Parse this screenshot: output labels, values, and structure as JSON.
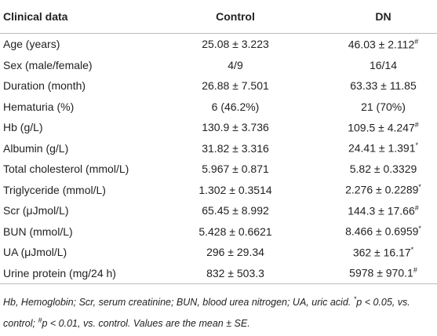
{
  "table": {
    "header": [
      "Clinical data",
      "Control",
      "DN"
    ],
    "rows": [
      [
        "Age (years)",
        {
          "text": "25.08 ± 3.223"
        },
        {
          "text": "46.03 ± 2.112",
          "sup": "#"
        }
      ],
      [
        "Sex (male/female)",
        {
          "text": "4/9"
        },
        {
          "text": "16/14"
        }
      ],
      [
        "Duration (month)",
        {
          "text": "26.88 ± 7.501"
        },
        {
          "text": "63.33 ± 11.85"
        }
      ],
      [
        "Hematuria (%)",
        {
          "text": "6 (46.2%)"
        },
        {
          "text": "21 (70%)"
        }
      ],
      [
        "Hb (g/L)",
        {
          "text": "130.9 ± 3.736"
        },
        {
          "text": "109.5 ± 4.247",
          "sup": "#"
        }
      ],
      [
        "Albumin (g/L)",
        {
          "text": "31.82 ± 3.316"
        },
        {
          "text": "24.41 ± 1.391",
          "sup": "*"
        }
      ],
      [
        "Total cholesterol (mmol/L)",
        {
          "text": "5.967 ± 0.871"
        },
        {
          "text": "5.82 ± 0.3329"
        }
      ],
      [
        "Triglyceride (mmol/L)",
        {
          "text": "1.302 ± 0.3514"
        },
        {
          "text": "2.276 ± 0.2289",
          "sup": "*"
        }
      ],
      [
        "Scr (μJmol/L)",
        {
          "text": "65.45 ± 8.992"
        },
        {
          "text": "144.3 ± 17.66",
          "sup": "#"
        }
      ],
      [
        "BUN (mmol/L)",
        {
          "text": "5.428 ± 0.6621"
        },
        {
          "text": "8.466 ± 0.6959",
          "sup": "*"
        }
      ],
      [
        "UA (μJmol/L)",
        {
          "text": "296 ± 29.34"
        },
        {
          "text": "362 ± 16.17",
          "sup": "*"
        }
      ],
      [
        "Urine protein (mg/24 h)",
        {
          "text": "832 ± 503.3"
        },
        {
          "text": "5978 ± 970.1",
          "sup": "#"
        }
      ]
    ],
    "footnote": [
      {
        "text": "Hb, Hemoglobin; Scr, serum creatinine; BUN, blood urea nitrogen; UA, uric acid. "
      },
      {
        "sup": "*"
      },
      {
        "text": "p < 0.05, vs. control; "
      },
      {
        "sup": "#"
      },
      {
        "text": "p < 0.01, vs. control. Values are the mean ± SE."
      }
    ]
  }
}
